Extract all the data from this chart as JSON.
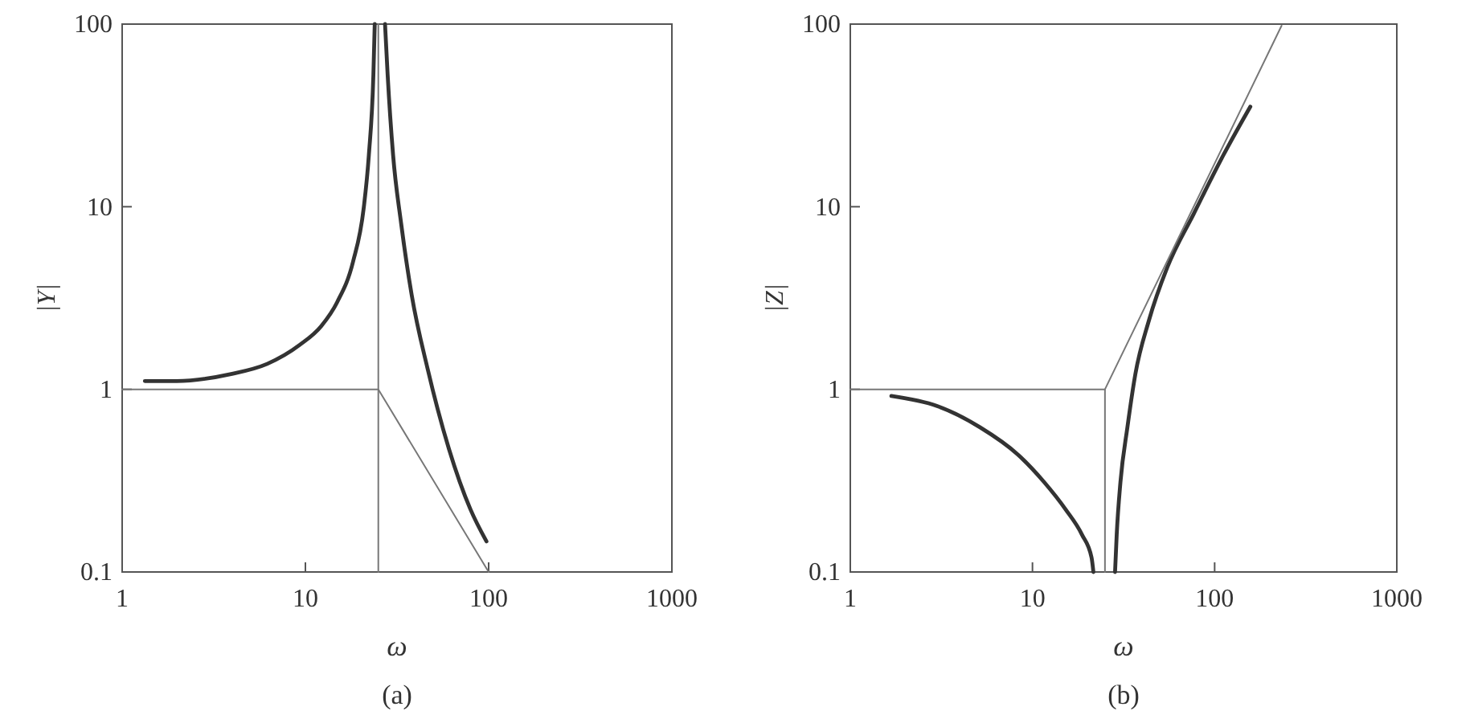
{
  "chart_data": [
    {
      "type": "line",
      "xlabel": "ω",
      "ylabel": "|Y|",
      "annotations": [
        "(a)"
      ],
      "log": "xy",
      "xlim": [
        1,
        1000
      ],
      "ylim": [
        0.1,
        100
      ],
      "xticks": [
        1,
        10,
        100,
        1000
      ],
      "yticks": [
        0.1,
        1,
        10,
        100
      ],
      "grid": false,
      "series": [
        {
          "color": "#333333",
          "x": [
            1.33,
            1.98,
            3.88,
            6.2,
            9.3,
            12.2,
            14.9,
            18.2,
            20.8,
            22.2,
            23.5,
            23.9
          ],
          "values": [
            1.11,
            1.11,
            1.21,
            1.38,
            1.75,
            2.22,
            3.0,
            5.0,
            9.8,
            19.2,
            53,
            100
          ]
        },
        {
          "color": "#333333",
          "x": [
            27.2,
            28.1,
            30.1,
            33.3,
            38,
            46.5,
            60.8,
            79.6,
            97.3
          ],
          "values": [
            100,
            53,
            19.2,
            8.1,
            3.3,
            1.29,
            0.47,
            0.22,
            0.147
          ]
        },
        {
          "color": "#777777",
          "x": [
            1,
            25,
            100
          ],
          "values": [
            1,
            1,
            0.1
          ]
        },
        {
          "color": "#777777",
          "x": [
            25,
            25
          ],
          "values": [
            0.1,
            100
          ]
        }
      ]
    },
    {
      "type": "line",
      "xlabel": "ω",
      "ylabel": "|Z|",
      "annotations": [
        "(b)"
      ],
      "log": "xy",
      "xlim": [
        1,
        1000
      ],
      "ylim": [
        0.1,
        100
      ],
      "xticks": [
        1,
        10,
        100,
        1000
      ],
      "yticks": [
        0.1,
        1,
        10,
        100
      ],
      "grid": false,
      "series": [
        {
          "color": "#333333",
          "x": [
            1.68,
            3.0,
            5.15,
            8.3,
            11.6,
            15.2,
            18.7,
            21.1,
            21.6
          ],
          "values": [
            0.92,
            0.81,
            0.62,
            0.44,
            0.31,
            0.22,
            0.16,
            0.12,
            0.1
          ]
        },
        {
          "color": "#333333",
          "x": [
            28.4,
            29,
            30.4,
            33.2,
            36.7,
            43.5,
            55,
            77,
            108,
            157
          ],
          "values": [
            0.1,
            0.16,
            0.31,
            0.62,
            1.21,
            2.37,
            4.66,
            9.2,
            18,
            35.3
          ]
        },
        {
          "color": "#777777",
          "x": [
            1,
            25,
            233
          ],
          "values": [
            1,
            1,
            98
          ]
        },
        {
          "color": "#777777",
          "x": [
            25,
            25
          ],
          "values": [
            0.1,
            1
          ]
        }
      ]
    }
  ]
}
